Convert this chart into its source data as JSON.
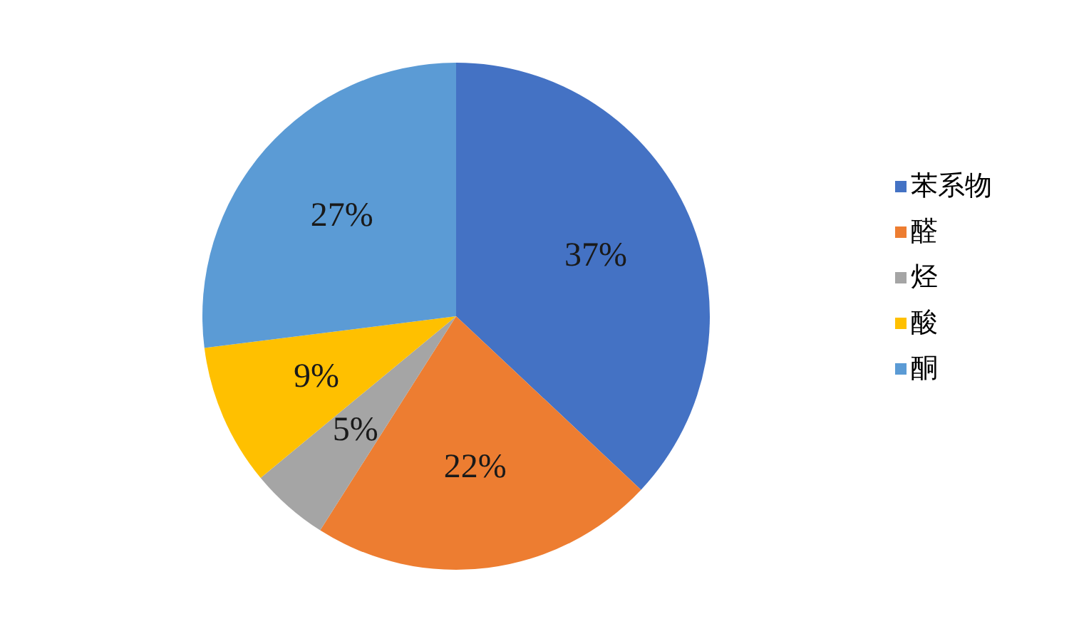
{
  "chart_data": {
    "type": "pie",
    "categories": [
      "苯系物",
      "醛",
      "烃",
      "酸",
      "酮"
    ],
    "values": [
      37,
      22,
      5,
      9,
      27
    ],
    "value_labels": [
      "37%",
      "22%",
      "5%",
      "9%",
      "27%"
    ],
    "colors": [
      "#4472c4",
      "#ed7d31",
      "#a5a5a5",
      "#ffc000",
      "#5b9bd5"
    ],
    "legend": "right"
  }
}
